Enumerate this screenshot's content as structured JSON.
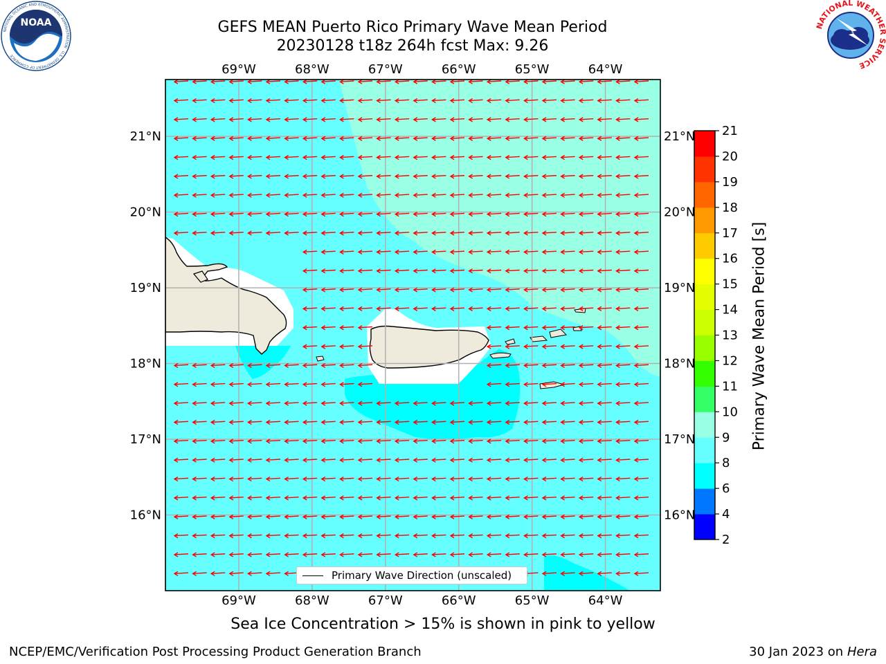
{
  "header": {
    "title_line1": "GEFS MEAN Puerto Rico Primary Wave Mean Period",
    "title_line2": "20230128 t18z 264h fcst   Max: 9.26"
  },
  "logos": {
    "noaa_text": "NOAA",
    "noaa_ring_text": "NATIONAL OCEANIC AND ATMOSPHERIC ADMINISTRATION",
    "noaa_bottom_text": "U.S. DEPARTMENT OF COMMERCE",
    "nws_ring_text": "NATIONAL WEATHER SERVICE"
  },
  "map": {
    "lon_labels": [
      "69°W",
      "68°W",
      "67°W",
      "66°W",
      "65°W",
      "64°W"
    ],
    "lat_labels": [
      "21°N",
      "20°N",
      "19°N",
      "18°N",
      "17°N",
      "16°N"
    ],
    "lon_values": [
      -69,
      -68,
      -67,
      -66,
      -65,
      -64
    ],
    "lat_values": [
      21,
      20,
      19,
      18,
      17,
      16
    ],
    "extent": {
      "lon_min": -70.0,
      "lon_max": -63.25,
      "lat_min": 15.0,
      "lat_max": 21.75
    },
    "gridlines": true,
    "land_color": "#efebdc",
    "arrow_color": "#ff0000",
    "wave_direction_note": "arrows point toward west (easterly swell), slight southward tilt near coasts"
  },
  "legend": {
    "label": "Primary Wave Direction (unscaled)",
    "placement": "lower-center"
  },
  "colorbar": {
    "title": "Primary Wave Mean Period [s]",
    "ticks": [
      "2",
      "4",
      "6",
      "8",
      "9",
      "10",
      "11",
      "12",
      "13",
      "14",
      "15",
      "16",
      "17",
      "18",
      "19",
      "20",
      "21"
    ],
    "colors": [
      "#0000ff",
      "#0077ff",
      "#00ffff",
      "#66ffff",
      "#99ffe5",
      "#33ff66",
      "#33ff00",
      "#99ff00",
      "#ccff00",
      "#e5ff00",
      "#ffff00",
      "#ffcc00",
      "#ff9900",
      "#ff6600",
      "#ff3300",
      "#ff0000"
    ]
  },
  "caption": "Sea Ice Concentration > 15% is shown in pink to yellow",
  "footer": {
    "left": "NCEP/EMC/Verification Post Processing Product Generation Branch",
    "right_prefix": "30 Jan 2023 on ",
    "right_machine": "Hera"
  }
}
